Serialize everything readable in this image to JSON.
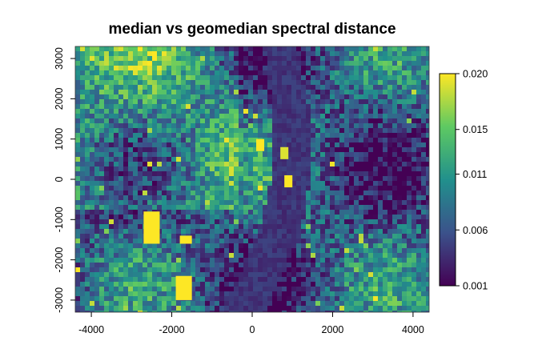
{
  "chart_data": {
    "type": "heatmap",
    "title": "median vs geomedian spectral distance",
    "xlabel": "",
    "ylabel": "",
    "xlim": [
      -4400,
      4400
    ],
    "ylim": [
      -3300,
      3300
    ],
    "x_ticks": [
      -4000,
      -2000,
      0,
      2000,
      4000
    ],
    "x_tick_labels": [
      "-4000",
      "-2000",
      "0",
      "2000",
      "4000"
    ],
    "y_ticks": [
      -3000,
      -2000,
      -1000,
      0,
      1000,
      2000,
      3000
    ],
    "y_tick_labels": [
      "-3000",
      "-2000",
      "-1000",
      "0",
      "1000",
      "2000",
      "3000"
    ],
    "colorbar": {
      "min": 0.001,
      "max": 0.02,
      "ticks": [
        0.001,
        0.006,
        0.011,
        0.015,
        0.02
      ],
      "tick_labels": [
        "0.001",
        "0.006",
        "0.011",
        "0.015",
        "0.020"
      ],
      "palette": [
        "#440154",
        "#3b528b",
        "#21908c",
        "#5ec962",
        "#fde725"
      ]
    },
    "high_value_patches": [
      {
        "x": [
          -2700,
          -2300
        ],
        "y": [
          -1600,
          -800
        ],
        "value": 0.02
      },
      {
        "x": [
          -1900,
          -1500
        ],
        "y": [
          -3000,
          -2400
        ],
        "value": 0.02
      },
      {
        "x": [
          100,
          300
        ],
        "y": [
          700,
          1000
        ],
        "value": 0.02
      },
      {
        "x": [
          700,
          900
        ],
        "y": [
          500,
          800
        ],
        "value": 0.019
      },
      {
        "x": [
          800,
          1000
        ],
        "y": [
          -200,
          100
        ],
        "value": 0.02
      },
      {
        "x": [
          -1800,
          -1500
        ],
        "y": [
          -1600,
          -1400
        ],
        "value": 0.02
      }
    ],
    "river_value": 0.004
  }
}
